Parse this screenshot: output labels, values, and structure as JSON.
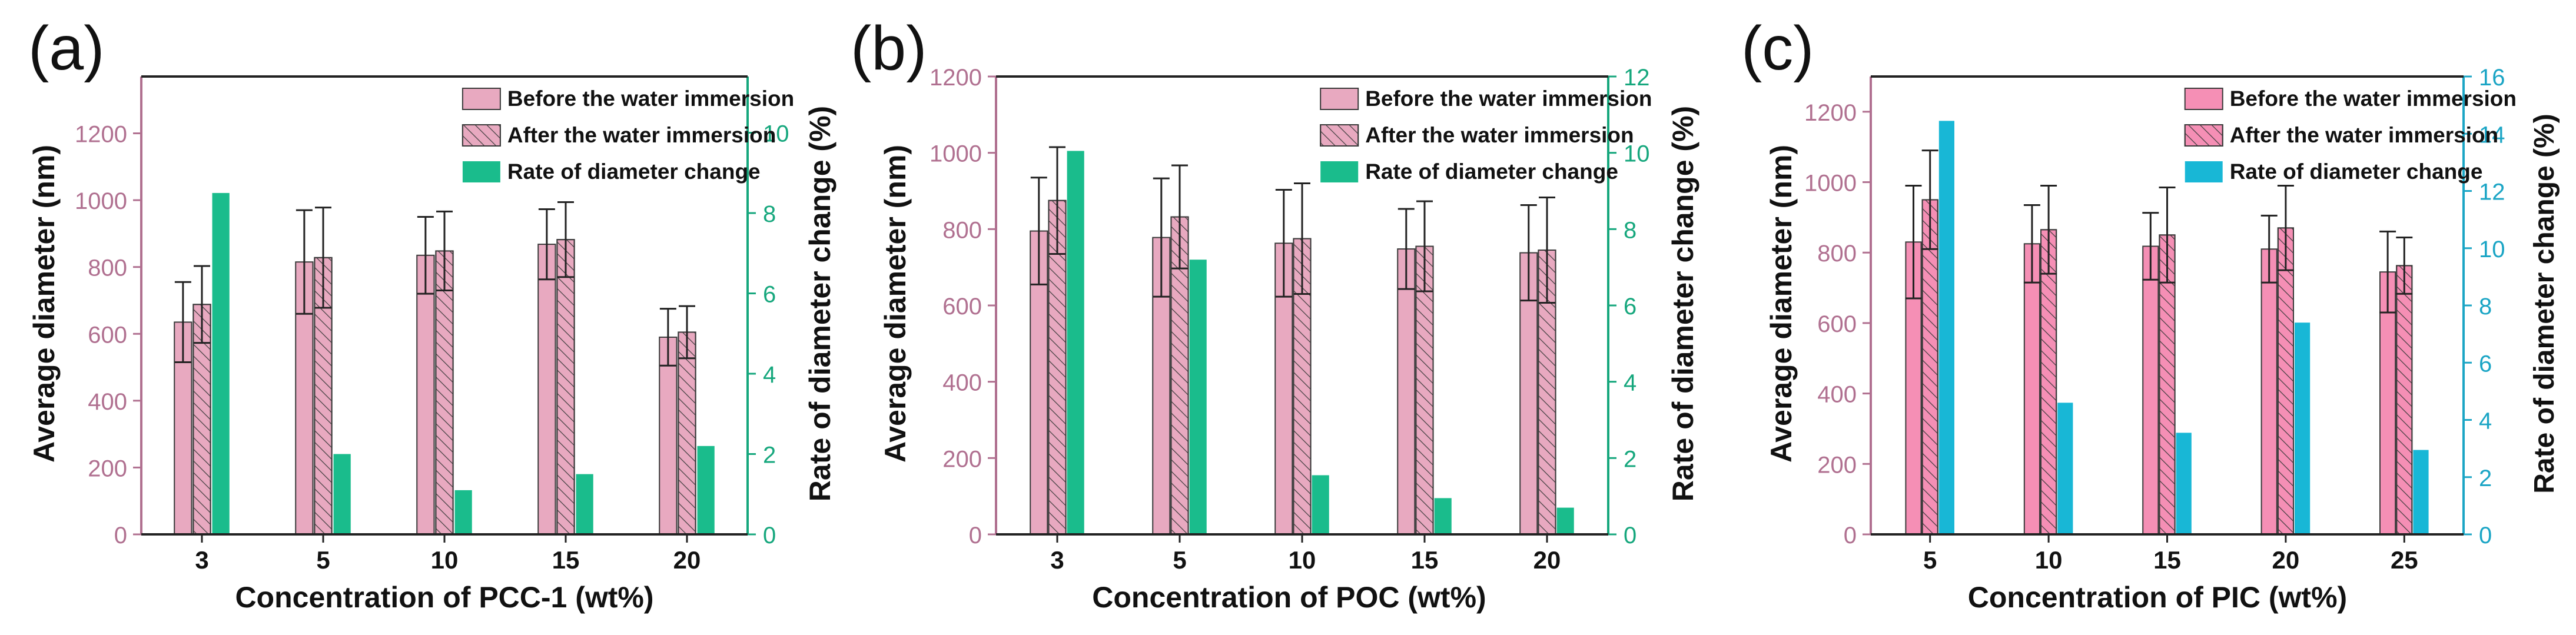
{
  "chart_data": [
    {
      "panel_label": "(a)",
      "type": "bar",
      "categories": [
        "3",
        "5",
        "10",
        "15",
        "20"
      ],
      "xlabel": "Concentration of PCC-1 (wt%)",
      "ylabel": "Average diameter (nm)",
      "y2label": "Rate of diameter change (%)",
      "ylim": [
        0,
        1370
      ],
      "yticks": [
        0,
        200,
        400,
        600,
        800,
        1000,
        1200
      ],
      "y2lim": [
        0,
        11.4
      ],
      "y2ticks": [
        0,
        2,
        4,
        6,
        8,
        10
      ],
      "legend_position": "top-right",
      "series": [
        {
          "name": "Before the water immersion",
          "axis": "left",
          "fill": "#e8a9c0",
          "hatch": false,
          "values": [
            635,
            815,
            835,
            868,
            590
          ],
          "errors": [
            120,
            155,
            115,
            105,
            85
          ]
        },
        {
          "name": "After the water immersion",
          "axis": "left",
          "fill": "#e8a9c0",
          "hatch": true,
          "values": [
            688,
            828,
            848,
            882,
            605
          ],
          "errors": [
            115,
            150,
            118,
            112,
            78
          ]
        },
        {
          "name": "Rate of diameter change",
          "axis": "right",
          "fill": "#1abc8c",
          "hatch": false,
          "values": [
            8.5,
            2.0,
            1.1,
            1.5,
            2.2
          ],
          "errors": []
        }
      ],
      "axis_color_left": "#b07090",
      "axis_color_right": "#16a77d"
    },
    {
      "panel_label": "(b)",
      "type": "bar",
      "categories": [
        "3",
        "5",
        "10",
        "15",
        "20"
      ],
      "xlabel": "Concentration of POC (wt%)",
      "ylabel": "Average diameter (nm)",
      "y2label": "Rate of diameter change (%)",
      "ylim": [
        0,
        1200
      ],
      "yticks": [
        0,
        200,
        400,
        600,
        800,
        1000,
        1200
      ],
      "y2lim": [
        0,
        12
      ],
      "y2ticks": [
        0,
        2,
        4,
        6,
        8,
        10,
        12
      ],
      "legend_position": "top-right",
      "series": [
        {
          "name": "Before the water immersion",
          "axis": "left",
          "fill": "#e8a9c0",
          "hatch": false,
          "values": [
            795,
            778,
            763,
            748,
            738
          ],
          "errors": [
            140,
            155,
            140,
            105,
            125
          ]
        },
        {
          "name": "After the water immersion",
          "axis": "left",
          "fill": "#e8a9c0",
          "hatch": true,
          "values": [
            875,
            832,
            775,
            755,
            745
          ],
          "errors": [
            140,
            135,
            145,
            118,
            138
          ]
        },
        {
          "name": "Rate of diameter change",
          "axis": "right",
          "fill": "#1abc8c",
          "hatch": false,
          "values": [
            10.05,
            7.2,
            1.55,
            0.95,
            0.7
          ],
          "errors": []
        }
      ],
      "axis_color_left": "#b07090",
      "axis_color_right": "#16a77d"
    },
    {
      "panel_label": "(c)",
      "type": "bar",
      "categories": [
        "5",
        "10",
        "15",
        "20",
        "25"
      ],
      "xlabel": "Concentration of PIC (wt%)",
      "ylabel": "Average diameter (nm)",
      "y2label": "Rate of diameter change (%)",
      "ylim": [
        0,
        1300
      ],
      "yticks": [
        0,
        200,
        400,
        600,
        800,
        1000,
        1200
      ],
      "y2lim": [
        0,
        16
      ],
      "y2ticks": [
        0,
        2,
        4,
        6,
        8,
        10,
        12,
        14,
        16
      ],
      "legend_position": "top-right",
      "series": [
        {
          "name": "Before the water immersion",
          "axis": "left",
          "fill": "#f58fb5",
          "hatch": false,
          "values": [
            830,
            825,
            818,
            810,
            745
          ],
          "errors": [
            160,
            110,
            95,
            95,
            115
          ]
        },
        {
          "name": "After the water immersion",
          "axis": "left",
          "fill": "#f58fb5",
          "hatch": true,
          "values": [
            950,
            865,
            850,
            870,
            763
          ],
          "errors": [
            140,
            125,
            135,
            120,
            80
          ]
        },
        {
          "name": "Rate of diameter change",
          "axis": "right",
          "fill": "#18b7d6",
          "hatch": false,
          "values": [
            14.45,
            4.6,
            3.55,
            7.4,
            2.95
          ],
          "errors": []
        }
      ],
      "axis_color_left": "#b07090",
      "axis_color_right": "#1ba5c5"
    }
  ]
}
